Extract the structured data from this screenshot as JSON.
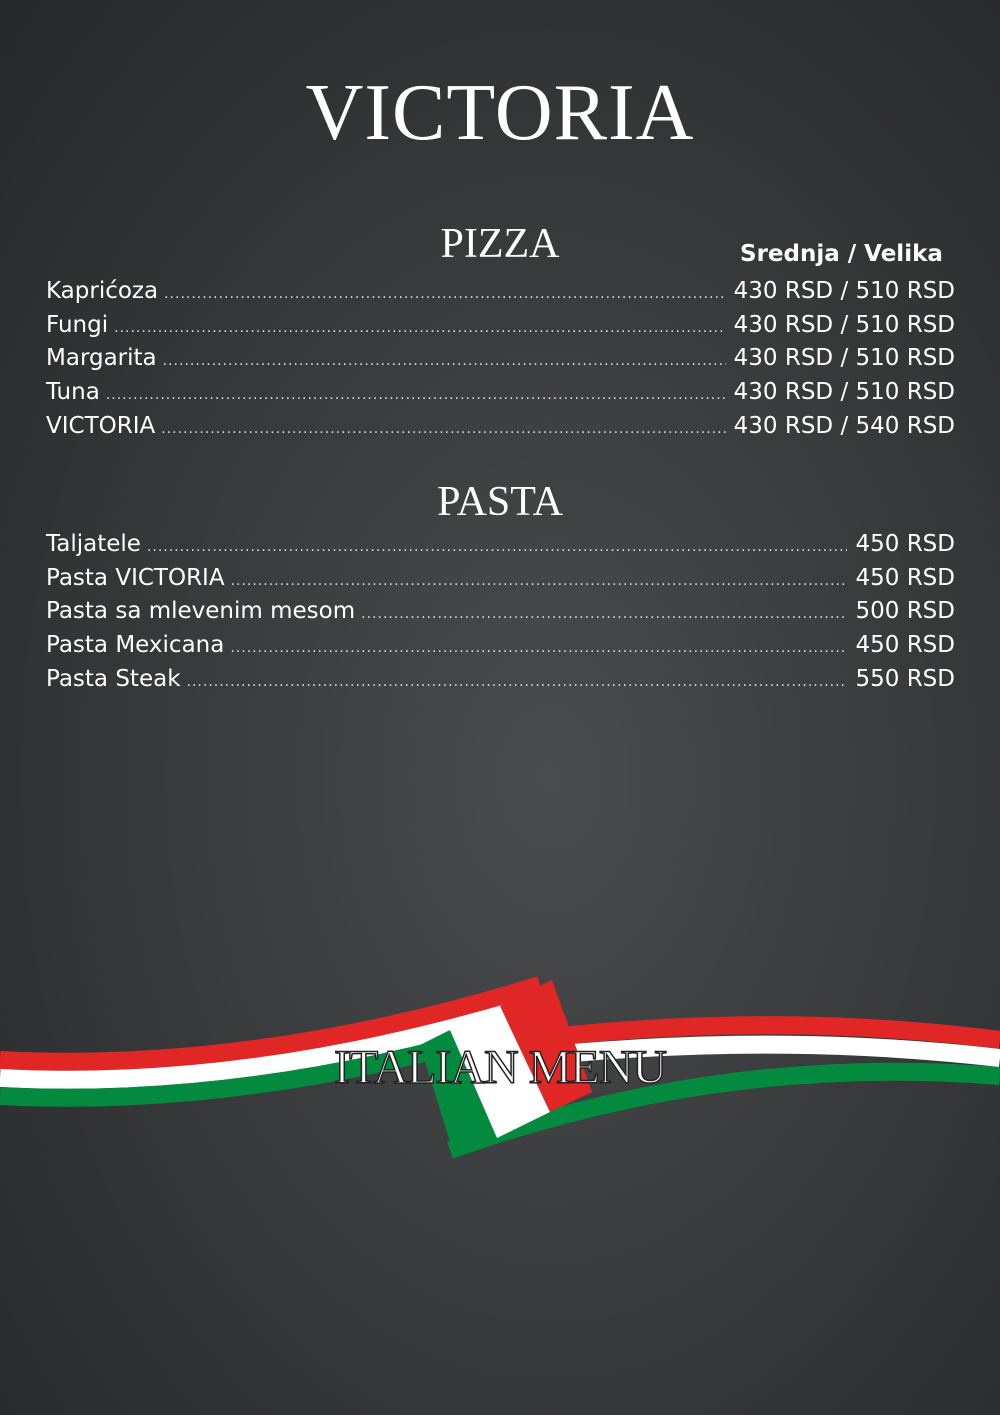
{
  "title": "VICTORIA",
  "pizza": {
    "heading": "PIZZA",
    "sizes": "Srednja / Velika",
    "items": [
      {
        "name": "Kaprićoza",
        "price": "430 RSD / 510 RSD"
      },
      {
        "name": "Fungi",
        "price": "430 RSD / 510 RSD"
      },
      {
        "name": "Margarita",
        "price": "430 RSD / 510 RSD"
      },
      {
        "name": "Tuna",
        "price": "430 RSD / 510 RSD"
      },
      {
        "name": "VICTORIA",
        "price": "430 RSD / 540 RSD"
      }
    ]
  },
  "pasta": {
    "heading": "PASTA",
    "items": [
      {
        "name": "Taljatele",
        "price": "450 RSD"
      },
      {
        "name": "Pasta VICTORIA",
        "price": "450 RSD"
      },
      {
        "name": "Pasta sa mlevenim mesom",
        "price": "500 RSD"
      },
      {
        "name": "Pasta Mexicana",
        "price": "450 RSD"
      },
      {
        "name": "Pasta Steak",
        "price": "550 RSD"
      }
    ]
  },
  "banner": "ITALIAN MENU",
  "colors": {
    "red": "#e02726",
    "white": "#ffffff",
    "green": "#048a3e",
    "background": "#3a3b3d"
  }
}
